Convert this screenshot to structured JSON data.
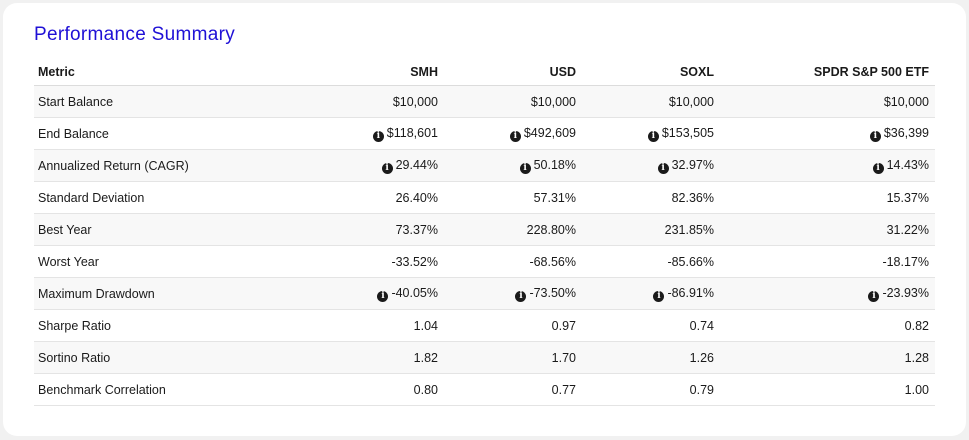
{
  "title": "Performance Summary",
  "table": {
    "headers": [
      "Metric",
      "SMH",
      "USD",
      "SOXL",
      "SPDR S&P 500 ETF"
    ],
    "rows": [
      {
        "metric": "Start Balance",
        "info": false,
        "values": [
          "$10,000",
          "$10,000",
          "$10,000",
          "$10,000"
        ]
      },
      {
        "metric": "End Balance",
        "info": true,
        "values": [
          "$118,601",
          "$492,609",
          "$153,505",
          "$36,399"
        ]
      },
      {
        "metric": "Annualized Return (CAGR)",
        "info": true,
        "values": [
          "29.44%",
          "50.18%",
          "32.97%",
          "14.43%"
        ]
      },
      {
        "metric": "Standard Deviation",
        "info": false,
        "values": [
          "26.40%",
          "57.31%",
          "82.36%",
          "15.37%"
        ]
      },
      {
        "metric": "Best Year",
        "info": false,
        "values": [
          "73.37%",
          "228.80%",
          "231.85%",
          "31.22%"
        ]
      },
      {
        "metric": "Worst Year",
        "info": false,
        "values": [
          "-33.52%",
          "-68.56%",
          "-85.66%",
          "-18.17%"
        ]
      },
      {
        "metric": "Maximum Drawdown",
        "info": true,
        "values": [
          "-40.05%",
          "-73.50%",
          "-86.91%",
          "-23.93%"
        ]
      },
      {
        "metric": "Sharpe Ratio",
        "info": false,
        "values": [
          "1.04",
          "0.97",
          "0.74",
          "0.82"
        ]
      },
      {
        "metric": "Sortino Ratio",
        "info": false,
        "values": [
          "1.82",
          "1.70",
          "1.26",
          "1.28"
        ]
      },
      {
        "metric": "Benchmark Correlation",
        "info": false,
        "values": [
          "0.80",
          "0.77",
          "0.79",
          "1.00"
        ]
      }
    ]
  },
  "icons": {
    "info_glyph": "i",
    "info_icon_name": "info-icon"
  },
  "colors": {
    "title": "#1f10d6",
    "text": "#1a1a1a",
    "row_stripe": "#f8f8f8"
  }
}
